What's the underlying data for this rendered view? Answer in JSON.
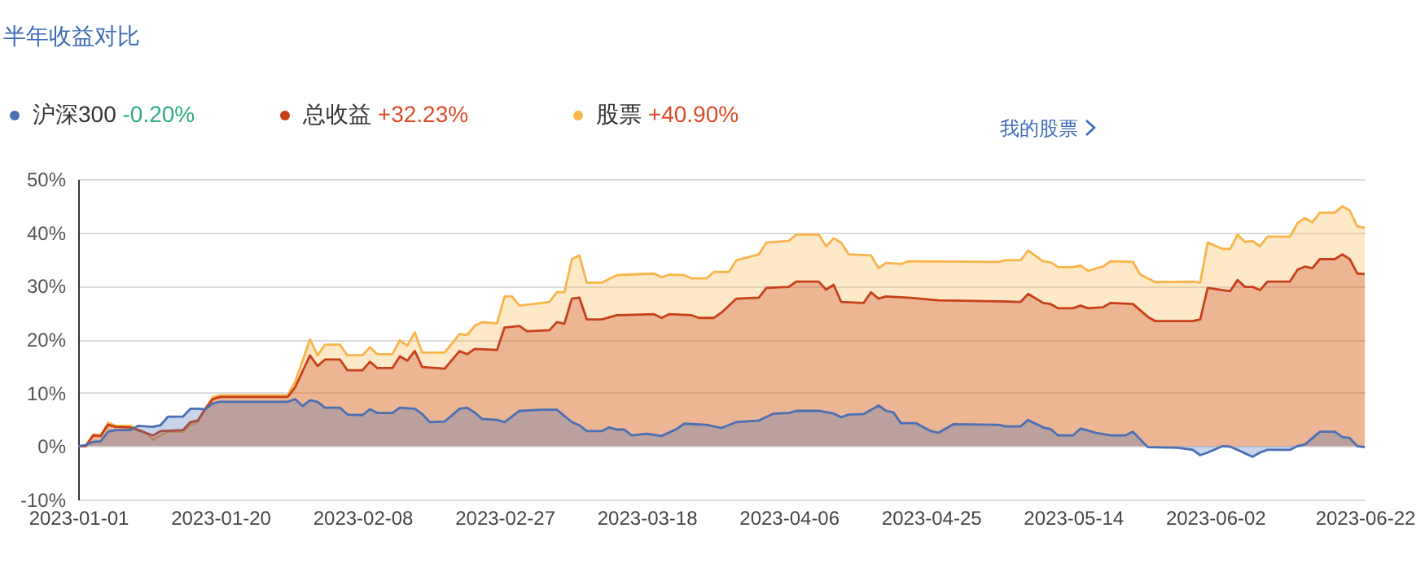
{
  "chart_data": {
    "type": "area",
    "title": "半年收益对比",
    "annotations": [
      "-0.20%",
      "+32.23%",
      "+40.90%",
      "我的股票"
    ],
    "xlim": [
      "2023-01-01",
      "2023-06-22"
    ],
    "xticks": [
      "2023-01-01",
      "2023-01-20",
      "2023-02-08",
      "2023-02-27",
      "2023-03-18",
      "2023-04-06",
      "2023-04-25",
      "2023-05-14",
      "2023-06-02",
      "2023-06-22"
    ],
    "ylim": [
      -10,
      50
    ],
    "yticks": [
      {
        "value": -10,
        "label": "-10%"
      },
      {
        "value": 0,
        "label": "0%"
      },
      {
        "value": 10,
        "label": "10%"
      },
      {
        "value": 20,
        "label": "20%"
      },
      {
        "value": 30,
        "label": "30%"
      },
      {
        "value": 40,
        "label": "40%"
      },
      {
        "value": 50,
        "label": "50%"
      }
    ],
    "grid": "y",
    "legend": "top left",
    "series": [
      {
        "name": "沪深300",
        "color": "#4a6fb5",
        "x": [
          "2023-01-01",
          "2023-01-02",
          "2023-01-03",
          "2023-01-04",
          "2023-01-05",
          "2023-01-06",
          "2023-01-08",
          "2023-01-09",
          "2023-01-11",
          "2023-01-12",
          "2023-01-13",
          "2023-01-15",
          "2023-01-16",
          "2023-01-17",
          "2023-01-18",
          "2023-01-19",
          "2023-01-20",
          "2023-01-29",
          "2023-01-30",
          "2023-01-31",
          "2023-02-01",
          "2023-02-02",
          "2023-02-03",
          "2023-02-05",
          "2023-02-06",
          "2023-02-08",
          "2023-02-09",
          "2023-02-10",
          "2023-02-12",
          "2023-02-13",
          "2023-02-15",
          "2023-02-16",
          "2023-02-17",
          "2023-02-19",
          "2023-02-21",
          "2023-02-22",
          "2023-02-23",
          "2023-02-24",
          "2023-02-26",
          "2023-02-27",
          "2023-03-01",
          "2023-03-04",
          "2023-03-06",
          "2023-03-08",
          "2023-03-09",
          "2023-03-10",
          "2023-03-12",
          "2023-03-13",
          "2023-03-14",
          "2023-03-15",
          "2023-03-16",
          "2023-03-18",
          "2023-03-20",
          "2023-03-22",
          "2023-03-23",
          "2023-03-26",
          "2023-03-28",
          "2023-03-30",
          "2023-04-02",
          "2023-04-04",
          "2023-04-06",
          "2023-04-07",
          "2023-04-10",
          "2023-04-12",
          "2023-04-13",
          "2023-04-14",
          "2023-04-16",
          "2023-04-18",
          "2023-04-19",
          "2023-04-20",
          "2023-04-21",
          "2023-04-23",
          "2023-04-25",
          "2023-04-26",
          "2023-04-28",
          "2023-05-04",
          "2023-05-05",
          "2023-05-07",
          "2023-05-08",
          "2023-05-10",
          "2023-05-11",
          "2023-05-12",
          "2023-05-14",
          "2023-05-15",
          "2023-05-17",
          "2023-05-19",
          "2023-05-21",
          "2023-05-22",
          "2023-05-24",
          "2023-05-28",
          "2023-05-30",
          "2023-05-31",
          "2023-06-01",
          "2023-06-03",
          "2023-06-04",
          "2023-06-05",
          "2023-06-07",
          "2023-06-08",
          "2023-06-09",
          "2023-06-12",
          "2023-06-13",
          "2023-06-14",
          "2023-06-16",
          "2023-06-18",
          "2023-06-19",
          "2023-06-20",
          "2023-06-21",
          "2023-06-22"
        ],
        "values": [
          0,
          0.2,
          0.8,
          0.9,
          2.7,
          3.0,
          3.0,
          3.8,
          3.6,
          3.9,
          5.5,
          5.5,
          7.0,
          7.0,
          6.9,
          8.0,
          8.3,
          8.3,
          8.8,
          7.5,
          8.6,
          8.3,
          7.2,
          7.2,
          5.9,
          5.8,
          6.9,
          6.2,
          6.2,
          7.2,
          7.0,
          6.0,
          4.5,
          4.6,
          7.0,
          7.2,
          6.3,
          5.1,
          4.9,
          4.5,
          6.6,
          6.8,
          6.8,
          4.5,
          3.9,
          2.8,
          2.8,
          3.5,
          3.1,
          3.1,
          2.0,
          2.3,
          1.9,
          3.2,
          4.2,
          4.0,
          3.4,
          4.5,
          4.8,
          6.1,
          6.2,
          6.6,
          6.6,
          6.1,
          5.4,
          5.9,
          6.0,
          7.6,
          6.6,
          6.3,
          4.3,
          4.3,
          2.8,
          2.5,
          4.1,
          4.0,
          3.7,
          3.7,
          4.9,
          3.5,
          3.2,
          2.0,
          2.0,
          3.3,
          2.5,
          2.0,
          2.0,
          2.7,
          -0.2,
          -0.3,
          -0.7,
          -1.7,
          -1.2,
          0,
          -0.1,
          -0.7,
          -2.0,
          -1.2,
          -0.7,
          -0.7,
          0,
          0.3,
          2.7,
          2.7,
          1.7,
          1.5,
          0,
          -0.2
        ]
      },
      {
        "name": "总收益",
        "color": "#c8401a",
        "x": [
          "2023-01-01",
          "2023-01-02",
          "2023-01-03",
          "2023-01-04",
          "2023-01-05",
          "2023-01-06",
          "2023-01-08",
          "2023-01-10",
          "2023-01-11",
          "2023-01-12",
          "2023-01-15",
          "2023-01-16",
          "2023-01-17",
          "2023-01-18",
          "2023-01-19",
          "2023-01-20",
          "2023-01-29",
          "2023-01-30",
          "2023-02-01",
          "2023-02-02",
          "2023-02-03",
          "2023-02-05",
          "2023-02-06",
          "2023-02-08",
          "2023-02-09",
          "2023-02-10",
          "2023-02-12",
          "2023-02-13",
          "2023-02-14",
          "2023-02-15",
          "2023-02-16",
          "2023-02-19",
          "2023-02-21",
          "2023-02-22",
          "2023-02-23",
          "2023-02-26",
          "2023-02-27",
          "2023-03-01",
          "2023-03-02",
          "2023-03-05",
          "2023-03-06",
          "2023-03-07",
          "2023-03-08",
          "2023-03-09",
          "2023-03-10",
          "2023-03-12",
          "2023-03-14",
          "2023-03-19",
          "2023-03-20",
          "2023-03-21",
          "2023-03-24",
          "2023-03-25",
          "2023-03-27",
          "2023-03-28",
          "2023-03-30",
          "2023-04-02",
          "2023-04-03",
          "2023-04-06",
          "2023-04-07",
          "2023-04-10",
          "2023-04-11",
          "2023-04-12",
          "2023-04-13",
          "2023-04-16",
          "2023-04-17",
          "2023-04-18",
          "2023-04-19",
          "2023-04-22",
          "2023-04-26",
          "2023-05-04",
          "2023-05-07",
          "2023-05-08",
          "2023-05-10",
          "2023-05-11",
          "2023-05-12",
          "2023-05-14",
          "2023-05-15",
          "2023-05-16",
          "2023-05-18",
          "2023-05-19",
          "2023-05-22",
          "2023-05-24",
          "2023-05-25",
          "2023-05-30",
          "2023-05-31",
          "2023-06-01",
          "2023-06-04",
          "2023-06-05",
          "2023-06-06",
          "2023-06-07",
          "2023-06-08",
          "2023-06-09",
          "2023-06-12",
          "2023-06-13",
          "2023-06-14",
          "2023-06-15",
          "2023-06-16",
          "2023-06-18",
          "2023-06-19",
          "2023-06-20",
          "2023-06-21",
          "2023-06-22"
        ],
        "values": [
          0,
          0,
          2.0,
          1.9,
          4.0,
          3.6,
          3.5,
          2.5,
          2.0,
          2.8,
          3.0,
          4.5,
          4.8,
          7,
          8.8,
          9.2,
          9.2,
          11,
          17,
          15,
          16.2,
          16.2,
          14.2,
          14.2,
          15.8,
          14.6,
          14.6,
          16.8,
          16,
          17.8,
          14.8,
          14.5,
          17.8,
          17.2,
          18.2,
          18,
          22.2,
          22.5,
          21.5,
          21.7,
          23.2,
          22.9,
          27.6,
          27.8,
          23.7,
          23.7,
          24.5,
          24.7,
          24,
          24.7,
          24.5,
          24,
          24,
          25,
          27.6,
          27.8,
          29.6,
          29.8,
          30.8,
          30.8,
          29.3,
          30.2,
          27,
          26.8,
          28.8,
          27.6,
          28,
          27.8,
          27.3,
          27.1,
          27,
          28.5,
          26.8,
          26.6,
          25.8,
          25.8,
          26.3,
          25.8,
          26,
          26.8,
          26.6,
          24.2,
          23.4,
          23.4,
          23.7,
          29.6,
          29,
          31.1,
          29.8,
          29.8,
          29.2,
          30.8,
          30.8,
          33,
          33.6,
          33.3,
          35,
          35,
          35.9,
          35,
          32.3,
          32.2
        ]
      },
      {
        "name": "股票",
        "color": "#f9b44a",
        "x": [
          "2023-01-01",
          "2023-01-02",
          "2023-01-03",
          "2023-01-04",
          "2023-01-05",
          "2023-01-06",
          "2023-01-08",
          "2023-01-10",
          "2023-01-11",
          "2023-01-12",
          "2023-01-13",
          "2023-01-15",
          "2023-01-16",
          "2023-01-17",
          "2023-01-18",
          "2023-01-19",
          "2023-01-20",
          "2023-01-29",
          "2023-01-30",
          "2023-02-01",
          "2023-02-02",
          "2023-02-03",
          "2023-02-05",
          "2023-02-06",
          "2023-02-08",
          "2023-02-09",
          "2023-02-10",
          "2023-02-12",
          "2023-02-13",
          "2023-02-14",
          "2023-02-15",
          "2023-02-16",
          "2023-02-19",
          "2023-02-21",
          "2023-02-22",
          "2023-02-23",
          "2023-02-24",
          "2023-02-26",
          "2023-02-27",
          "2023-02-28",
          "2023-03-01",
          "2023-03-04",
          "2023-03-05",
          "2023-03-06",
          "2023-03-07",
          "2023-03-08",
          "2023-03-09",
          "2023-03-10",
          "2023-03-12",
          "2023-03-14",
          "2023-03-19",
          "2023-03-20",
          "2023-03-21",
          "2023-03-23",
          "2023-03-24",
          "2023-03-26",
          "2023-03-27",
          "2023-03-29",
          "2023-03-30",
          "2023-04-02",
          "2023-04-03",
          "2023-04-06",
          "2023-04-07",
          "2023-04-10",
          "2023-04-11",
          "2023-04-12",
          "2023-04-13",
          "2023-04-14",
          "2023-04-17",
          "2023-04-18",
          "2023-04-19",
          "2023-04-21",
          "2023-04-22",
          "2023-05-04",
          "2023-05-05",
          "2023-05-07",
          "2023-05-08",
          "2023-05-10",
          "2023-05-11",
          "2023-05-12",
          "2023-05-14",
          "2023-05-15",
          "2023-05-16",
          "2023-05-18",
          "2023-05-19",
          "2023-05-22",
          "2023-05-23",
          "2023-05-25",
          "2023-05-30",
          "2023-05-31",
          "2023-06-01",
          "2023-06-03",
          "2023-06-04",
          "2023-06-05",
          "2023-06-06",
          "2023-06-07",
          "2023-06-08",
          "2023-06-09",
          "2023-06-12",
          "2023-06-13",
          "2023-06-14",
          "2023-06-15",
          "2023-06-16",
          "2023-06-18",
          "2023-06-19",
          "2023-06-20",
          "2023-06-21",
          "2023-06-22"
        ],
        "values": [
          0,
          0,
          2.2,
          2.0,
          4.4,
          3.8,
          3.8,
          2.5,
          1.2,
          2.0,
          2.7,
          2.7,
          4.0,
          4.5,
          7,
          9.2,
          9.5,
          9.5,
          12,
          20,
          17,
          19,
          19,
          17,
          17,
          18.5,
          17.2,
          17.2,
          19.8,
          18.8,
          21.3,
          17.5,
          17.5,
          21,
          20.8,
          22.5,
          23.2,
          23,
          28,
          28,
          26.3,
          26.8,
          27,
          28.8,
          28.8,
          35,
          35.7,
          30.6,
          30.6,
          32,
          32.3,
          31.6,
          32.1,
          32,
          31.4,
          31.4,
          32.6,
          32.6,
          34.8,
          35.9,
          38.1,
          38.4,
          39.6,
          39.6,
          37.4,
          38.9,
          38.1,
          35.9,
          35.7,
          33.3,
          34.3,
          34.1,
          34.6,
          34.5,
          34.8,
          34.8,
          36.6,
          34.6,
          34.4,
          33.5,
          33.5,
          33.8,
          32.8,
          33.6,
          34.6,
          34.5,
          32.1,
          30.7,
          30.8,
          30.6,
          38.1,
          36.9,
          36.9,
          39.6,
          38.2,
          38.4,
          37.4,
          39.2,
          39.2,
          41.7,
          42.7,
          41.9,
          43.7,
          43.7,
          44.9,
          44.1,
          41.1,
          40.9
        ]
      }
    ]
  }
}
